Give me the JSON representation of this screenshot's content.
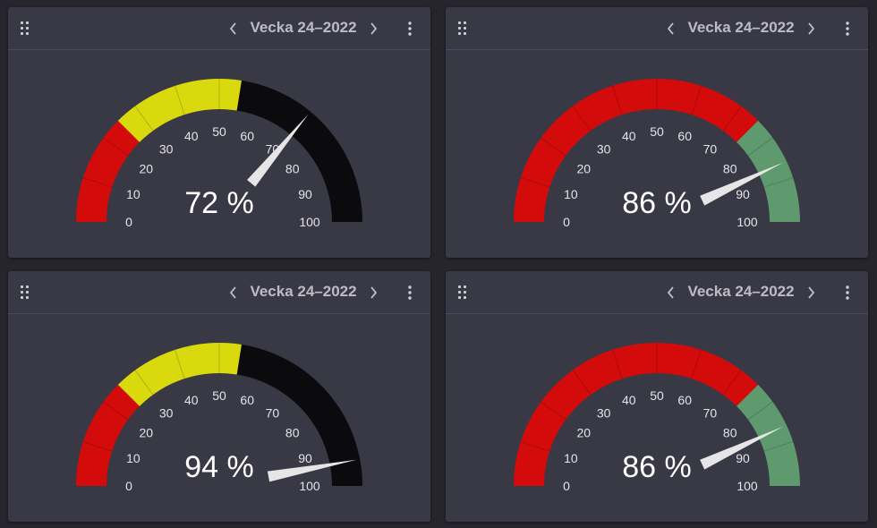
{
  "cards": [
    {
      "period_label": "Vecka 24–2022",
      "value": 72,
      "value_label": "72 %",
      "bands": [
        {
          "from": 0,
          "to": 25,
          "color": "#d40b0b"
        },
        {
          "from": 25,
          "to": 55,
          "color": "#d9d90e"
        },
        {
          "from": 55,
          "to": 100,
          "color": "#0b0b0e"
        }
      ]
    },
    {
      "period_label": "Vecka 24–2022",
      "value": 86,
      "value_label": "86 %",
      "bands": [
        {
          "from": 0,
          "to": 75,
          "color": "#d40b0b"
        },
        {
          "from": 75,
          "to": 100,
          "color": "#5f9a6f"
        }
      ]
    },
    {
      "period_label": "Vecka 24–2022",
      "value": 94,
      "value_label": "94 %",
      "bands": [
        {
          "from": 0,
          "to": 25,
          "color": "#d40b0b"
        },
        {
          "from": 25,
          "to": 55,
          "color": "#d9d90e"
        },
        {
          "from": 55,
          "to": 100,
          "color": "#0b0b0e"
        }
      ]
    },
    {
      "period_label": "Vecka 24–2022",
      "value": 86,
      "value_label": "86 %",
      "bands": [
        {
          "from": 0,
          "to": 75,
          "color": "#d40b0b"
        },
        {
          "from": 75,
          "to": 100,
          "color": "#5f9a6f"
        }
      ]
    }
  ],
  "gauge_scale": {
    "min": 0,
    "max": 100,
    "tick_labels": [
      "0",
      "10",
      "20",
      "30",
      "40",
      "50",
      "60",
      "70",
      "80",
      "90",
      "100"
    ]
  },
  "icons": {
    "drag": "drag-handle-icon",
    "prev": "chevron-left-icon",
    "next": "chevron-right-icon",
    "menu": "more-vertical-icon"
  },
  "colors": {
    "card_background": "#393845",
    "page_background": "#26252e",
    "needle": "#e6e6e6"
  }
}
